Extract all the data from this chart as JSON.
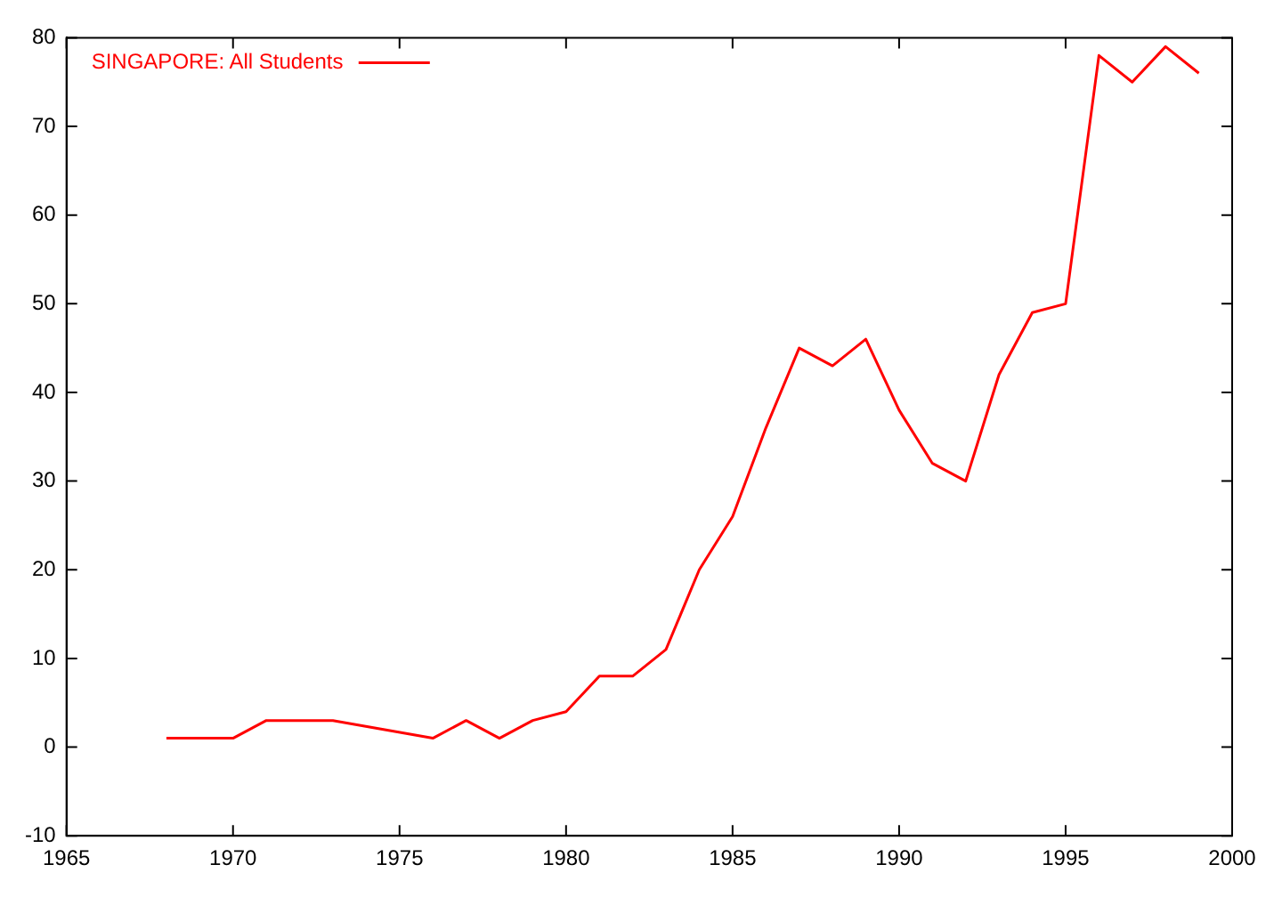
{
  "chart_data": {
    "type": "line",
    "x": [
      1968,
      1970,
      1971,
      1973,
      1976,
      1977,
      1978,
      1979,
      1980,
      1981,
      1982,
      1983,
      1984,
      1985,
      1986,
      1987,
      1988,
      1989,
      1990,
      1991,
      1992,
      1993,
      1994,
      1995,
      1996,
      1997,
      1998,
      1999
    ],
    "series": [
      {
        "name": "SINGAPORE: All Students",
        "color": "#ff0000",
        "values": [
          1,
          1,
          3,
          3,
          1,
          3,
          1,
          3,
          4,
          8,
          8,
          11,
          20,
          26,
          36,
          45,
          43,
          46,
          38,
          32,
          30,
          42,
          49,
          50,
          78,
          75,
          79,
          76
        ]
      }
    ],
    "xlim": [
      1965,
      2000
    ],
    "xticks": [
      1965,
      1970,
      1975,
      1980,
      1985,
      1990,
      1995,
      2000
    ],
    "ylim": [
      -10,
      80
    ],
    "yticks": [
      -10,
      0,
      10,
      20,
      30,
      40,
      50,
      60,
      70,
      80
    ],
    "grid": false,
    "legend": "top left",
    "marker": "none",
    "line_style": "solid"
  }
}
